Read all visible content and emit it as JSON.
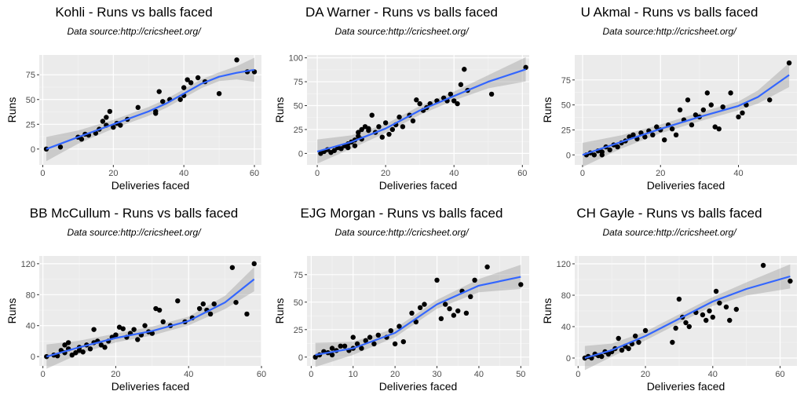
{
  "chart_data": [
    {
      "type": "scatter",
      "title": "Kohli - Runs vs balls faced",
      "subtitle": "Data source:http://cricsheet.org/",
      "xlabel": "Deliveries faced",
      "ylabel": "Runs",
      "xlim": [
        -1,
        62
      ],
      "ylim": [
        -16,
        95
      ],
      "xticks": [
        0,
        20,
        40,
        60
      ],
      "yticks": [
        0,
        25,
        50,
        75
      ],
      "grid": true,
      "smooth": true,
      "points": [
        [
          1,
          0
        ],
        [
          5,
          2
        ],
        [
          10,
          12
        ],
        [
          11,
          10
        ],
        [
          12,
          15
        ],
        [
          13,
          14
        ],
        [
          15,
          16
        ],
        [
          16,
          20
        ],
        [
          17,
          28
        ],
        [
          18,
          24
        ],
        [
          18,
          32
        ],
        [
          19,
          38
        ],
        [
          20,
          22
        ],
        [
          21,
          26
        ],
        [
          22,
          24
        ],
        [
          24,
          30
        ],
        [
          27,
          42
        ],
        [
          32,
          38
        ],
        [
          32,
          36
        ],
        [
          33,
          58
        ],
        [
          34,
          48
        ],
        [
          36,
          50
        ],
        [
          39,
          50
        ],
        [
          40,
          54
        ],
        [
          40,
          62
        ],
        [
          41,
          70
        ],
        [
          42,
          67
        ],
        [
          44,
          72
        ],
        [
          46,
          68
        ],
        [
          50,
          56
        ],
        [
          55,
          90
        ],
        [
          58,
          78
        ],
        [
          60,
          78
        ]
      ],
      "fit": [
        [
          1,
          0
        ],
        [
          10,
          12
        ],
        [
          20,
          25
        ],
        [
          30,
          38
        ],
        [
          35,
          46
        ],
        [
          40,
          56
        ],
        [
          45,
          66
        ],
        [
          50,
          73
        ],
        [
          55,
          77
        ],
        [
          60,
          80
        ]
      ]
    },
    {
      "type": "scatter",
      "title": "DA Warner - Runs vs balls faced",
      "subtitle": "Data source:http://cricsheet.org/",
      "xlabel": "Deliveries faced",
      "ylabel": "Runs",
      "xlim": [
        -3,
        62
      ],
      "ylim": [
        -12,
        103
      ],
      "xticks": [
        0,
        20,
        40,
        60
      ],
      "yticks": [
        0,
        25,
        50,
        75,
        100
      ],
      "grid": true,
      "smooth": true,
      "points": [
        [
          1,
          0
        ],
        [
          2,
          2
        ],
        [
          3,
          4
        ],
        [
          4,
          1
        ],
        [
          5,
          3
        ],
        [
          6,
          6
        ],
        [
          7,
          5
        ],
        [
          8,
          8
        ],
        [
          9,
          10
        ],
        [
          9,
          6
        ],
        [
          10,
          12
        ],
        [
          11,
          14
        ],
        [
          11,
          8
        ],
        [
          12,
          18
        ],
        [
          12,
          22
        ],
        [
          13,
          25
        ],
        [
          13,
          15
        ],
        [
          14,
          28
        ],
        [
          15,
          26
        ],
        [
          15,
          24
        ],
        [
          16,
          40
        ],
        [
          17,
          22
        ],
        [
          18,
          28
        ],
        [
          19,
          17
        ],
        [
          20,
          32
        ],
        [
          21,
          20
        ],
        [
          22,
          25
        ],
        [
          23,
          30
        ],
        [
          24,
          38
        ],
        [
          25,
          28
        ],
        [
          27,
          40
        ],
        [
          28,
          34
        ],
        [
          29,
          56
        ],
        [
          30,
          52
        ],
        [
          31,
          45
        ],
        [
          32,
          48
        ],
        [
          33,
          52
        ],
        [
          35,
          55
        ],
        [
          37,
          58
        ],
        [
          38,
          55
        ],
        [
          39,
          62
        ],
        [
          40,
          55
        ],
        [
          41,
          52
        ],
        [
          42,
          72
        ],
        [
          43,
          88
        ],
        [
          44,
          66
        ],
        [
          51,
          62
        ],
        [
          61,
          90
        ]
      ],
      "fit": [
        [
          0,
          2
        ],
        [
          10,
          12
        ],
        [
          20,
          26
        ],
        [
          30,
          45
        ],
        [
          40,
          60
        ],
        [
          50,
          75
        ],
        [
          61,
          88
        ]
      ]
    },
    {
      "type": "scatter",
      "title": "U Akmal - Runs vs balls faced",
      "subtitle": "Data source:http://cricsheet.org/",
      "xlabel": "Deliveries faced",
      "ylabel": "Runs",
      "xlim": [
        -2,
        55
      ],
      "ylim": [
        -10,
        100
      ],
      "xticks": [
        0,
        20,
        40
      ],
      "yticks": [
        0,
        25,
        50,
        75
      ],
      "grid": true,
      "smooth": true,
      "points": [
        [
          1,
          0
        ],
        [
          2,
          2
        ],
        [
          3,
          0
        ],
        [
          4,
          4
        ],
        [
          5,
          3
        ],
        [
          5,
          0
        ],
        [
          6,
          8
        ],
        [
          7,
          5
        ],
        [
          8,
          10
        ],
        [
          9,
          8
        ],
        [
          10,
          12
        ],
        [
          11,
          14
        ],
        [
          12,
          18
        ],
        [
          13,
          20
        ],
        [
          14,
          16
        ],
        [
          15,
          22
        ],
        [
          16,
          18
        ],
        [
          17,
          24
        ],
        [
          18,
          20
        ],
        [
          19,
          28
        ],
        [
          20,
          25
        ],
        [
          21,
          15
        ],
        [
          22,
          30
        ],
        [
          23,
          26
        ],
        [
          24,
          20
        ],
        [
          25,
          45
        ],
        [
          26,
          35
        ],
        [
          27,
          55
        ],
        [
          28,
          30
        ],
        [
          29,
          40
        ],
        [
          30,
          38
        ],
        [
          31,
          45
        ],
        [
          32,
          62
        ],
        [
          33,
          50
        ],
        [
          34,
          28
        ],
        [
          35,
          26
        ],
        [
          36,
          48
        ],
        [
          38,
          62
        ],
        [
          40,
          38
        ],
        [
          41,
          42
        ],
        [
          42,
          50
        ],
        [
          48,
          55
        ],
        [
          53,
          92
        ]
      ],
      "fit": [
        [
          0,
          0
        ],
        [
          10,
          13
        ],
        [
          20,
          26
        ],
        [
          30,
          38
        ],
        [
          40,
          49
        ],
        [
          45,
          58
        ],
        [
          53,
          80
        ]
      ]
    },
    {
      "type": "scatter",
      "title": "BB McCullum - Runs vs balls faced",
      "subtitle": "Data source:http://cricsheet.org/",
      "xlabel": "Deliveries faced",
      "ylabel": "Runs",
      "xlim": [
        -1,
        60
      ],
      "ylim": [
        -12,
        130
      ],
      "xticks": [
        0,
        20,
        40,
        60
      ],
      "yticks": [
        0,
        40,
        80,
        120
      ],
      "grid": true,
      "smooth": true,
      "points": [
        [
          1,
          0
        ],
        [
          3,
          2
        ],
        [
          4,
          1
        ],
        [
          5,
          8
        ],
        [
          6,
          5
        ],
        [
          6,
          15
        ],
        [
          7,
          10
        ],
        [
          7,
          18
        ],
        [
          8,
          2
        ],
        [
          9,
          5
        ],
        [
          10,
          8
        ],
        [
          10,
          12
        ],
        [
          11,
          6
        ],
        [
          12,
          15
        ],
        [
          13,
          10
        ],
        [
          14,
          18
        ],
        [
          14,
          35
        ],
        [
          15,
          20
        ],
        [
          16,
          15
        ],
        [
          17,
          12
        ],
        [
          18,
          20
        ],
        [
          19,
          25
        ],
        [
          20,
          28
        ],
        [
          21,
          38
        ],
        [
          22,
          36
        ],
        [
          23,
          25
        ],
        [
          24,
          30
        ],
        [
          25,
          35
        ],
        [
          26,
          22
        ],
        [
          27,
          28
        ],
        [
          28,
          40
        ],
        [
          29,
          32
        ],
        [
          30,
          30
        ],
        [
          31,
          62
        ],
        [
          32,
          60
        ],
        [
          33,
          45
        ],
        [
          35,
          40
        ],
        [
          37,
          72
        ],
        [
          39,
          45
        ],
        [
          41,
          50
        ],
        [
          43,
          62
        ],
        [
          44,
          68
        ],
        [
          45,
          60
        ],
        [
          46,
          55
        ],
        [
          47,
          68
        ],
        [
          52,
          115
        ],
        [
          53,
          70
        ],
        [
          56,
          55
        ],
        [
          58,
          120
        ]
      ],
      "fit": [
        [
          1,
          0
        ],
        [
          10,
          12
        ],
        [
          20,
          24
        ],
        [
          30,
          33
        ],
        [
          40,
          46
        ],
        [
          50,
          70
        ],
        [
          58,
          100
        ]
      ]
    },
    {
      "type": "scatter",
      "title": "EJG Morgan - Runs vs balls faced",
      "subtitle": "Data source:http://cricsheet.org/",
      "xlabel": "Deliveries faced",
      "ylabel": "Runs",
      "xlim": [
        -1,
        52
      ],
      "ylim": [
        -8,
        92
      ],
      "xticks": [
        0,
        10,
        20,
        30,
        40,
        50
      ],
      "yticks": [
        0,
        25,
        50,
        75
      ],
      "grid": true,
      "smooth": true,
      "points": [
        [
          1,
          0
        ],
        [
          2,
          2
        ],
        [
          3,
          5
        ],
        [
          4,
          4
        ],
        [
          5,
          2
        ],
        [
          5,
          8
        ],
        [
          6,
          6
        ],
        [
          7,
          10
        ],
        [
          8,
          10
        ],
        [
          9,
          6
        ],
        [
          10,
          8
        ],
        [
          10,
          18
        ],
        [
          11,
          12
        ],
        [
          12,
          8
        ],
        [
          13,
          15
        ],
        [
          14,
          18
        ],
        [
          15,
          12
        ],
        [
          16,
          20
        ],
        [
          18,
          18
        ],
        [
          19,
          24
        ],
        [
          20,
          12
        ],
        [
          21,
          28
        ],
        [
          22,
          14
        ],
        [
          24,
          40
        ],
        [
          25,
          32
        ],
        [
          26,
          45
        ],
        [
          27,
          48
        ],
        [
          30,
          70
        ],
        [
          31,
          35
        ],
        [
          32,
          48
        ],
        [
          33,
          44
        ],
        [
          34,
          38
        ],
        [
          35,
          42
        ],
        [
          36,
          60
        ],
        [
          37,
          40
        ],
        [
          38,
          55
        ],
        [
          39,
          70
        ],
        [
          42,
          82
        ],
        [
          50,
          66
        ]
      ],
      "fit": [
        [
          1,
          2
        ],
        [
          10,
          8
        ],
        [
          20,
          22
        ],
        [
          30,
          48
        ],
        [
          40,
          65
        ],
        [
          50,
          73
        ]
      ]
    },
    {
      "type": "scatter",
      "title": "CH Gayle - Runs vs balls faced",
      "subtitle": "Data source:http://cricsheet.org/",
      "xlabel": "Deliveries faced",
      "ylabel": "Runs",
      "xlim": [
        -1,
        65
      ],
      "ylim": [
        -10,
        130
      ],
      "xticks": [
        0,
        20,
        40,
        60
      ],
      "yticks": [
        0,
        40,
        80,
        120
      ],
      "grid": true,
      "smooth": true,
      "points": [
        [
          2,
          0
        ],
        [
          3,
          2
        ],
        [
          4,
          0
        ],
        [
          5,
          5
        ],
        [
          6,
          3
        ],
        [
          7,
          2
        ],
        [
          8,
          8
        ],
        [
          9,
          5
        ],
        [
          10,
          8
        ],
        [
          11,
          12
        ],
        [
          12,
          25
        ],
        [
          13,
          10
        ],
        [
          14,
          15
        ],
        [
          15,
          12
        ],
        [
          16,
          18
        ],
        [
          17,
          28
        ],
        [
          18,
          20
        ],
        [
          20,
          35
        ],
        [
          28,
          20
        ],
        [
          29,
          38
        ],
        [
          30,
          75
        ],
        [
          31,
          52
        ],
        [
          32,
          45
        ],
        [
          33,
          40
        ],
        [
          35,
          58
        ],
        [
          37,
          55
        ],
        [
          38,
          48
        ],
        [
          39,
          60
        ],
        [
          40,
          52
        ],
        [
          41,
          85
        ],
        [
          42,
          70
        ],
        [
          44,
          65
        ],
        [
          45,
          48
        ],
        [
          47,
          62
        ],
        [
          55,
          118
        ],
        [
          63,
          98
        ]
      ],
      "fit": [
        [
          2,
          0
        ],
        [
          10,
          10
        ],
        [
          20,
          28
        ],
        [
          30,
          50
        ],
        [
          40,
          72
        ],
        [
          50,
          88
        ],
        [
          63,
          104
        ]
      ]
    }
  ]
}
